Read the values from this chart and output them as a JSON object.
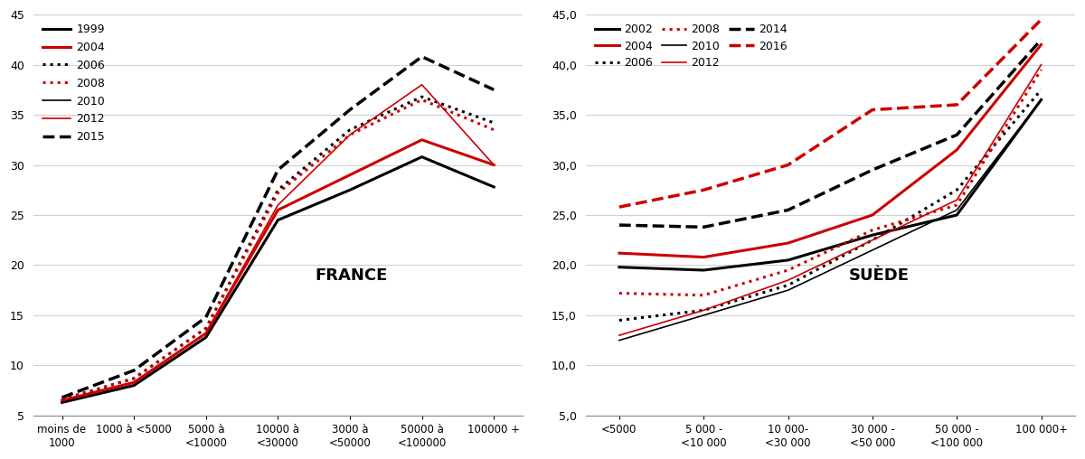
{
  "france": {
    "x_labels": [
      "moins de\n1000",
      "1000 à <5000",
      "5000 à\n<10000",
      "10000 à\n<30000",
      "3000 à\n<50000",
      "50000 à\n<100000",
      "100000 +"
    ],
    "series_order": [
      "1999",
      "2004",
      "2006",
      "2008",
      "2010",
      "2012",
      "2015"
    ],
    "series": {
      "1999": {
        "color": "#000000",
        "linestyle": "solid",
        "linewidth": 2.2,
        "values": [
          6.3,
          8.0,
          12.8,
          24.5,
          27.5,
          30.8,
          27.8
        ]
      },
      "2004": {
        "color": "#cc0000",
        "linestyle": "solid",
        "linewidth": 2.2,
        "values": [
          6.5,
          8.3,
          13.2,
          25.5,
          29.0,
          32.5,
          30.0
        ]
      },
      "2006": {
        "color": "#000000",
        "linestyle": "dotted",
        "linewidth": 2.2,
        "values": [
          6.6,
          8.7,
          13.7,
          27.5,
          33.5,
          36.8,
          34.2
        ]
      },
      "2008": {
        "color": "#cc0000",
        "linestyle": "dotted",
        "linewidth": 2.2,
        "values": [
          6.6,
          8.7,
          13.7,
          27.2,
          33.0,
          36.5,
          33.5
        ]
      },
      "2010": {
        "color": "#000000",
        "linestyle": "solid",
        "linewidth": 1.2,
        "values": [
          6.3,
          8.0,
          12.8,
          24.5,
          27.5,
          30.8,
          27.8
        ]
      },
      "2012": {
        "color": "#cc0000",
        "linestyle": "solid",
        "linewidth": 1.2,
        "values": [
          6.5,
          8.3,
          13.2,
          26.0,
          33.0,
          38.0,
          30.0
        ]
      },
      "2015": {
        "color": "#000000",
        "linestyle": "dashed",
        "linewidth": 2.5,
        "values": [
          6.8,
          9.5,
          14.8,
          29.5,
          35.5,
          40.8,
          37.5
        ]
      }
    },
    "ylim": [
      5,
      45
    ],
    "yticks": [
      5,
      10,
      15,
      20,
      25,
      30,
      35,
      40,
      45
    ],
    "label": "FRANCE"
  },
  "suede": {
    "x_labels": [
      "<5000",
      "5 000 -\n<10 000",
      "10 000-\n<30 000",
      "30 000 -\n<50 000",
      "50 000 -\n<100 000",
      "100 000+"
    ],
    "series_order": [
      "2002",
      "2004",
      "2006",
      "2008",
      "2010",
      "2012",
      "2014",
      "2016"
    ],
    "series": {
      "2002": {
        "color": "#000000",
        "linestyle": "solid",
        "linewidth": 2.2,
        "values": [
          19.8,
          19.5,
          20.5,
          23.0,
          25.0,
          36.5
        ]
      },
      "2004": {
        "color": "#cc0000",
        "linestyle": "solid",
        "linewidth": 2.2,
        "values": [
          21.2,
          20.8,
          22.2,
          25.0,
          31.5,
          42.0
        ]
      },
      "2006": {
        "color": "#000000",
        "linestyle": "dotted",
        "linewidth": 2.2,
        "values": [
          14.5,
          15.5,
          18.0,
          22.5,
          27.5,
          37.5
        ]
      },
      "2008": {
        "color": "#cc0000",
        "linestyle": "dotted",
        "linewidth": 2.2,
        "values": [
          17.2,
          17.0,
          19.5,
          23.5,
          26.0,
          39.5
        ]
      },
      "2010": {
        "color": "#000000",
        "linestyle": "solid",
        "linewidth": 1.2,
        "values": [
          12.5,
          15.0,
          17.5,
          21.5,
          25.5,
          36.5
        ]
      },
      "2012": {
        "color": "#cc0000",
        "linestyle": "solid",
        "linewidth": 1.2,
        "values": [
          13.0,
          15.5,
          18.5,
          22.5,
          26.5,
          40.0
        ]
      },
      "2014": {
        "color": "#000000",
        "linestyle": "dashed",
        "linewidth": 2.5,
        "values": [
          24.0,
          23.8,
          25.5,
          29.5,
          33.0,
          42.5
        ]
      },
      "2016": {
        "color": "#cc0000",
        "linestyle": "dashed",
        "linewidth": 2.5,
        "values": [
          25.8,
          27.5,
          30.0,
          35.5,
          36.0,
          44.5
        ]
      }
    },
    "ylim": [
      5,
      45
    ],
    "yticks": [
      5.0,
      10.0,
      15.0,
      20.0,
      25.0,
      30.0,
      35.0,
      40.0,
      45.0
    ],
    "label": "SUÈDE"
  },
  "bg_color": "#ffffff",
  "grid_color": "#d0d0d0"
}
